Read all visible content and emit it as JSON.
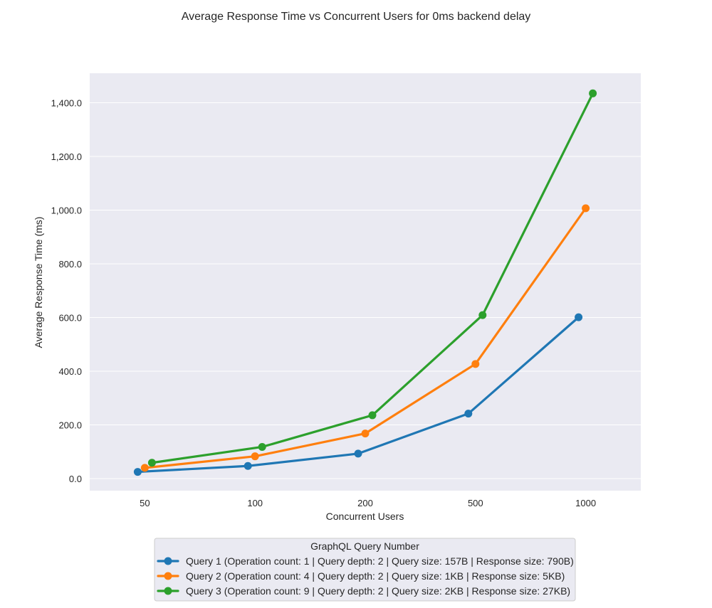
{
  "chart_data": {
    "type": "line",
    "title": "Average Response Time vs Concurrent Users for 0ms backend delay",
    "xlabel": "Concurrent Users",
    "ylabel": "Average Response Time (ms)",
    "categories": [
      "50",
      "100",
      "200",
      "500",
      "1000"
    ],
    "ylim": [
      -45,
      1510
    ],
    "yticks": [
      0,
      200,
      400,
      600,
      800,
      1000,
      1200,
      1400
    ],
    "ytick_labels": [
      "0.0",
      "200.0",
      "400.0",
      "600.0",
      "800.0",
      "1,000.0",
      "1,200.0",
      "1,400.0"
    ],
    "grid": true,
    "legend": {
      "title": "GraphQL Query Number",
      "placement": "bottom-center"
    },
    "series": [
      {
        "name": "Query 1 (Operation count: 1 | Query depth: 2 | Query size: 157B | Response size: 790B)",
        "color": "#1f77b4",
        "values": [
          25,
          47,
          93,
          242,
          601
        ]
      },
      {
        "name": "Query 2 (Operation count: 4 | Query depth: 2 | Query size: 1KB | Response size: 5KB)",
        "color": "#ff7f0e",
        "values": [
          40,
          83,
          168,
          427,
          1007
        ]
      },
      {
        "name": "Query 3 (Operation count: 9 | Query depth: 2 | Query size: 2KB | Response size: 27KB)",
        "color": "#2ca02c",
        "values": [
          59,
          118,
          236,
          609,
          1435
        ]
      }
    ]
  }
}
